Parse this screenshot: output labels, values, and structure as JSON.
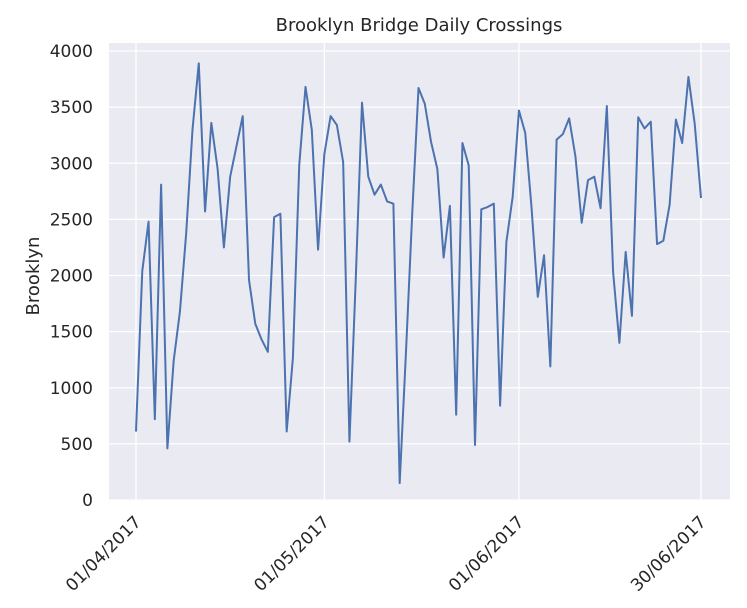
{
  "chart_data": {
    "type": "line",
    "title": "Brooklyn Bridge Daily Crossings",
    "xlabel": "",
    "ylabel": "Brooklyn",
    "x_start": "2017-04-01",
    "x_end": "2017-06-30",
    "ylim": [
      0,
      4000
    ],
    "yticks": [
      0,
      500,
      1000,
      1500,
      2000,
      2500,
      3000,
      3500,
      4000
    ],
    "xticks": [
      {
        "date": "2017-04-01",
        "label": "01/04/2017"
      },
      {
        "date": "2017-05-01",
        "label": "01/05/2017"
      },
      {
        "date": "2017-06-01",
        "label": "01/06/2017"
      },
      {
        "date": "2017-06-30",
        "label": "30/06/2017"
      }
    ],
    "grid": true,
    "background": "#eaeaf2",
    "line_color": "#4c72b0",
    "series": [
      {
        "values": [
          {
            "x": "2017-04-01",
            "y": 610
          },
          {
            "x": "2017-04-02",
            "y": 2040
          },
          {
            "x": "2017-04-03",
            "y": 2480
          },
          {
            "x": "2017-04-04",
            "y": 720
          },
          {
            "x": "2017-04-05",
            "y": 2810
          },
          {
            "x": "2017-04-06",
            "y": 460
          },
          {
            "x": "2017-04-07",
            "y": 1240
          },
          {
            "x": "2017-04-08",
            "y": 1680
          },
          {
            "x": "2017-04-09",
            "y": 2380
          },
          {
            "x": "2017-04-10",
            "y": 3300
          },
          {
            "x": "2017-04-11",
            "y": 3890
          },
          {
            "x": "2017-04-12",
            "y": 2570
          },
          {
            "x": "2017-04-13",
            "y": 3360
          },
          {
            "x": "2017-04-14",
            "y": 2950
          },
          {
            "x": "2017-04-15",
            "y": 2250
          },
          {
            "x": "2017-04-16",
            "y": 2880
          },
          {
            "x": "2017-04-17",
            "y": 3150
          },
          {
            "x": "2017-04-18",
            "y": 3420
          },
          {
            "x": "2017-04-19",
            "y": 1960
          },
          {
            "x": "2017-04-20",
            "y": 1570
          },
          {
            "x": "2017-04-21",
            "y": 1430
          },
          {
            "x": "2017-04-22",
            "y": 1320
          },
          {
            "x": "2017-04-23",
            "y": 2520
          },
          {
            "x": "2017-04-24",
            "y": 2550
          },
          {
            "x": "2017-04-25",
            "y": 610
          },
          {
            "x": "2017-04-26",
            "y": 1270
          },
          {
            "x": "2017-04-27",
            "y": 2980
          },
          {
            "x": "2017-04-28",
            "y": 3680
          },
          {
            "x": "2017-04-29",
            "y": 3300
          },
          {
            "x": "2017-04-30",
            "y": 2230
          },
          {
            "x": "2017-05-01",
            "y": 3080
          },
          {
            "x": "2017-05-02",
            "y": 3420
          },
          {
            "x": "2017-05-03",
            "y": 3340
          },
          {
            "x": "2017-05-04",
            "y": 3010
          },
          {
            "x": "2017-05-05",
            "y": 520
          },
          {
            "x": "2017-05-06",
            "y": 1960
          },
          {
            "x": "2017-05-07",
            "y": 3540
          },
          {
            "x": "2017-05-08",
            "y": 2880
          },
          {
            "x": "2017-05-09",
            "y": 2720
          },
          {
            "x": "2017-05-10",
            "y": 2810
          },
          {
            "x": "2017-05-11",
            "y": 2660
          },
          {
            "x": "2017-05-12",
            "y": 2640
          },
          {
            "x": "2017-05-13",
            "y": 150
          },
          {
            "x": "2017-05-14",
            "y": 1310
          },
          {
            "x": "2017-05-15",
            "y": 2550
          },
          {
            "x": "2017-05-16",
            "y": 3670
          },
          {
            "x": "2017-05-17",
            "y": 3530
          },
          {
            "x": "2017-05-18",
            "y": 3190
          },
          {
            "x": "2017-05-19",
            "y": 2950
          },
          {
            "x": "2017-05-20",
            "y": 2160
          },
          {
            "x": "2017-05-21",
            "y": 2620
          },
          {
            "x": "2017-05-22",
            "y": 760
          },
          {
            "x": "2017-05-23",
            "y": 3180
          },
          {
            "x": "2017-05-24",
            "y": 2980
          },
          {
            "x": "2017-05-25",
            "y": 490
          },
          {
            "x": "2017-05-26",
            "y": 2590
          },
          {
            "x": "2017-05-27",
            "y": 2610
          },
          {
            "x": "2017-05-28",
            "y": 2640
          },
          {
            "x": "2017-05-29",
            "y": 840
          },
          {
            "x": "2017-05-30",
            "y": 2300
          },
          {
            "x": "2017-05-31",
            "y": 2700
          },
          {
            "x": "2017-06-01",
            "y": 3470
          },
          {
            "x": "2017-06-02",
            "y": 3270
          },
          {
            "x": "2017-06-03",
            "y": 2610
          },
          {
            "x": "2017-06-04",
            "y": 1810
          },
          {
            "x": "2017-06-05",
            "y": 2180
          },
          {
            "x": "2017-06-06",
            "y": 1190
          },
          {
            "x": "2017-06-07",
            "y": 3210
          },
          {
            "x": "2017-06-08",
            "y": 3260
          },
          {
            "x": "2017-06-09",
            "y": 3400
          },
          {
            "x": "2017-06-10",
            "y": 3060
          },
          {
            "x": "2017-06-11",
            "y": 2470
          },
          {
            "x": "2017-06-12",
            "y": 2850
          },
          {
            "x": "2017-06-13",
            "y": 2880
          },
          {
            "x": "2017-06-14",
            "y": 2600
          },
          {
            "x": "2017-06-15",
            "y": 3510
          },
          {
            "x": "2017-06-16",
            "y": 2030
          },
          {
            "x": "2017-06-17",
            "y": 1400
          },
          {
            "x": "2017-06-18",
            "y": 2210
          },
          {
            "x": "2017-06-19",
            "y": 1640
          },
          {
            "x": "2017-06-20",
            "y": 3410
          },
          {
            "x": "2017-06-21",
            "y": 3310
          },
          {
            "x": "2017-06-22",
            "y": 3370
          },
          {
            "x": "2017-06-23",
            "y": 2280
          },
          {
            "x": "2017-06-24",
            "y": 2310
          },
          {
            "x": "2017-06-25",
            "y": 2630
          },
          {
            "x": "2017-06-26",
            "y": 3390
          },
          {
            "x": "2017-06-27",
            "y": 3180
          },
          {
            "x": "2017-06-28",
            "y": 3770
          },
          {
            "x": "2017-06-29",
            "y": 3350
          },
          {
            "x": "2017-06-30",
            "y": 2690
          }
        ]
      }
    ]
  }
}
